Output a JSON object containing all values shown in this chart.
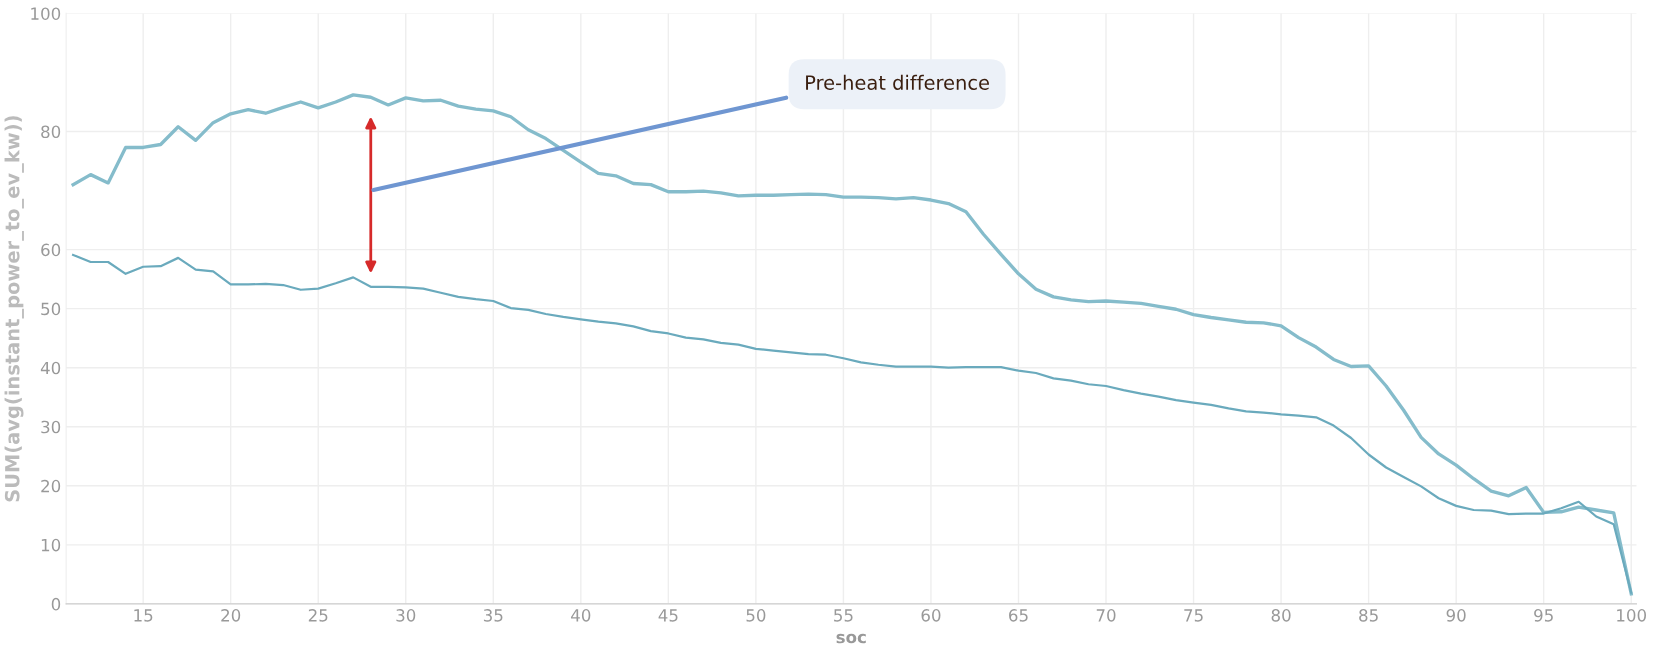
{
  "chart_data": {
    "type": "line",
    "x": [
      11,
      12,
      13,
      14,
      15,
      16,
      17,
      18,
      19,
      20,
      21,
      22,
      23,
      24,
      25,
      26,
      27,
      28,
      29,
      30,
      31,
      32,
      33,
      34,
      35,
      36,
      37,
      38,
      39,
      40,
      41,
      42,
      43,
      44,
      45,
      46,
      47,
      48,
      49,
      50,
      51,
      52,
      53,
      54,
      55,
      56,
      57,
      58,
      59,
      60,
      61,
      62,
      63,
      64,
      65,
      66,
      67,
      68,
      69,
      70,
      71,
      72,
      73,
      74,
      75,
      76,
      77,
      78,
      79,
      80,
      81,
      82,
      83,
      84,
      85,
      86,
      87,
      88,
      89,
      90,
      91,
      92,
      93,
      94,
      95,
      96,
      97,
      98,
      99,
      100
    ],
    "series": [
      {
        "color": "#85bccb",
        "values": [
          71.0,
          72.7,
          71.3,
          77.3,
          77.3,
          77.8,
          80.8,
          78.5,
          81.5,
          83.0,
          83.7,
          83.1,
          84.1,
          85.0,
          84.0,
          85.0,
          86.2,
          85.8,
          84.5,
          85.7,
          85.2,
          85.3,
          84.3,
          83.8,
          83.5,
          82.5,
          80.3,
          78.8,
          76.8,
          74.8,
          72.9,
          72.5,
          71.2,
          71.0,
          69.8,
          69.8,
          69.9,
          69.6,
          69.1,
          69.2,
          69.2,
          69.3,
          69.4,
          69.3,
          68.9,
          68.9,
          68.8,
          68.6,
          68.8,
          68.4,
          67.8,
          66.4,
          62.6,
          59.2,
          55.9,
          53.3,
          52.0,
          51.5,
          51.2,
          51.3,
          51.1,
          50.9,
          50.4,
          49.9,
          49.0,
          48.5,
          48.1,
          47.7,
          47.6,
          47.1,
          45.1,
          43.5,
          41.4,
          40.2,
          40.3,
          36.9,
          32.8,
          28.2,
          25.4,
          23.5,
          21.2,
          19.1,
          18.3,
          19.7,
          15.5,
          15.6,
          16.4,
          15.9,
          15.4,
          1.7
        ]
      },
      {
        "color": "#6aaabd",
        "values": [
          59.1,
          57.9,
          57.9,
          55.9,
          57.1,
          57.2,
          58.6,
          56.6,
          56.3,
          54.1,
          54.1,
          54.2,
          54.0,
          53.2,
          53.4,
          54.3,
          55.3,
          53.7,
          53.7,
          53.6,
          53.4,
          52.7,
          52.0,
          51.6,
          51.3,
          50.1,
          49.8,
          49.1,
          48.6,
          48.2,
          47.8,
          47.5,
          47.0,
          46.2,
          45.8,
          45.1,
          44.8,
          44.2,
          43.9,
          43.2,
          42.9,
          42.6,
          42.3,
          42.2,
          41.6,
          40.9,
          40.5,
          40.2,
          40.2,
          40.2,
          40.0,
          40.1,
          40.1,
          40.1,
          39.5,
          39.1,
          38.2,
          37.8,
          37.2,
          36.9,
          36.2,
          35.6,
          35.1,
          34.5,
          34.1,
          33.7,
          33.1,
          32.6,
          32.4,
          32.1,
          31.9,
          31.6,
          30.2,
          28.1,
          25.3,
          23.1,
          21.5,
          19.9,
          17.9,
          16.6,
          15.9,
          15.8,
          15.2,
          15.3,
          15.3,
          16.2,
          17.3,
          14.8,
          13.5,
          1.9
        ]
      }
    ],
    "xlabel": "soc",
    "ylabel": "SUM(avg(instant_power_to_ev_kw))",
    "xlim": [
      10.6,
      100.3
    ],
    "ylim": [
      0,
      100
    ],
    "xticks": [
      15,
      20,
      25,
      30,
      35,
      40,
      45,
      50,
      55,
      60,
      65,
      70,
      75,
      80,
      85,
      90,
      95,
      100
    ],
    "yticks": [
      0,
      10,
      20,
      30,
      40,
      50,
      60,
      80,
      100
    ],
    "grid": true,
    "marker": "none",
    "line_style": "solid",
    "legend": false,
    "annotations": [
      "Pre-heat difference"
    ]
  }
}
